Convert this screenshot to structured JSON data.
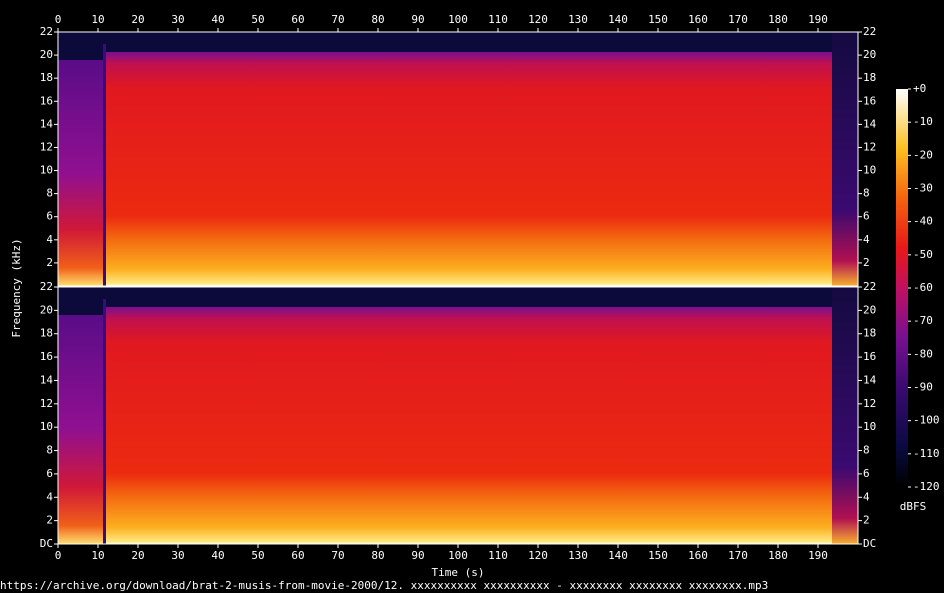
{
  "chart_data": {
    "type": "spectrogram",
    "xlabel": "Time (s)",
    "ylabel": "Frequency (kHz)",
    "xlim": [
      0,
      200
    ],
    "xticks": [
      0,
      10,
      20,
      30,
      40,
      50,
      60,
      70,
      80,
      90,
      100,
      110,
      120,
      130,
      140,
      150,
      160,
      170,
      180,
      190
    ],
    "panels": [
      {
        "ylim": [
          0,
          22
        ],
        "yticks": [
          2,
          4,
          6,
          8,
          10,
          12,
          14,
          16,
          18,
          20,
          22
        ]
      },
      {
        "ylim": [
          0,
          22
        ],
        "yticks": [
          {
            "value": 0,
            "label": "DC"
          },
          2,
          4,
          6,
          8,
          10,
          12,
          14,
          16,
          18,
          20,
          22
        ]
      }
    ],
    "colorbar": {
      "label": "dBFS",
      "lim": [
        -120,
        0
      ],
      "ticks": [
        {
          "value": 0,
          "label": "+0"
        },
        -10,
        -20,
        -30,
        -40,
        -50,
        -60,
        -70,
        -80,
        -90,
        -100,
        -110,
        -120
      ]
    },
    "source": "https://archive.org/download/brat-2-musis-from-movie-2000/12. xxxxxxxxxx xxxxxxxxxx - xxxxxxxx xxxxxxxx xxxxxxxx.mp3"
  }
}
